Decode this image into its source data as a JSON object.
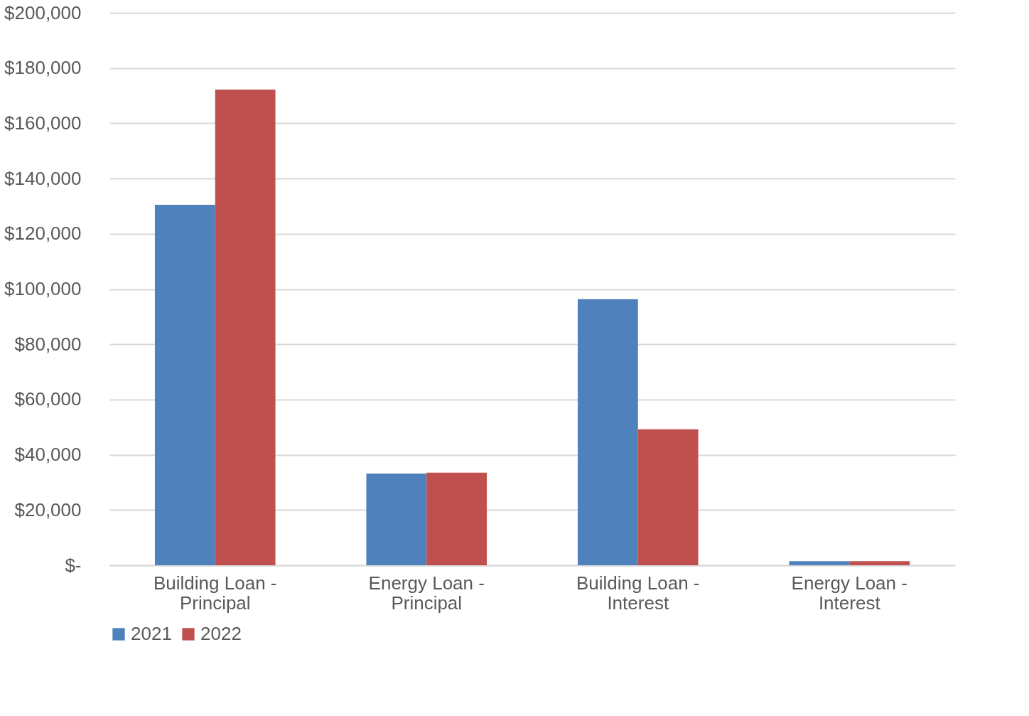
{
  "chart_data": {
    "type": "bar",
    "categories": [
      "Building Loan - Principal",
      "Energy Loan - Principal",
      "Building Loan - Interest",
      "Energy Loan - Interest"
    ],
    "series": [
      {
        "name": "2021",
        "color": "#4f81bd",
        "values": [
          130500,
          33200,
          96300,
          1500
        ]
      },
      {
        "name": "2022",
        "color": "#c0504d",
        "values": [
          172200,
          33500,
          49200,
          1500
        ]
      }
    ],
    "ylim": [
      0,
      200000
    ],
    "yticks": [
      {
        "value": 0,
        "label": "$-"
      },
      {
        "value": 20000,
        "label": "$20,000"
      },
      {
        "value": 40000,
        "label": "$40,000"
      },
      {
        "value": 60000,
        "label": "$60,000"
      },
      {
        "value": 80000,
        "label": "$80,000"
      },
      {
        "value": 100000,
        "label": "$100,000"
      },
      {
        "value": 120000,
        "label": "$120,000"
      },
      {
        "value": 140000,
        "label": "$140,000"
      },
      {
        "value": 160000,
        "label": "$160,000"
      },
      {
        "value": 180000,
        "label": "$180,000"
      },
      {
        "value": 200000,
        "label": "$200,000"
      }
    ],
    "grid": "y",
    "legend": "bottom"
  }
}
